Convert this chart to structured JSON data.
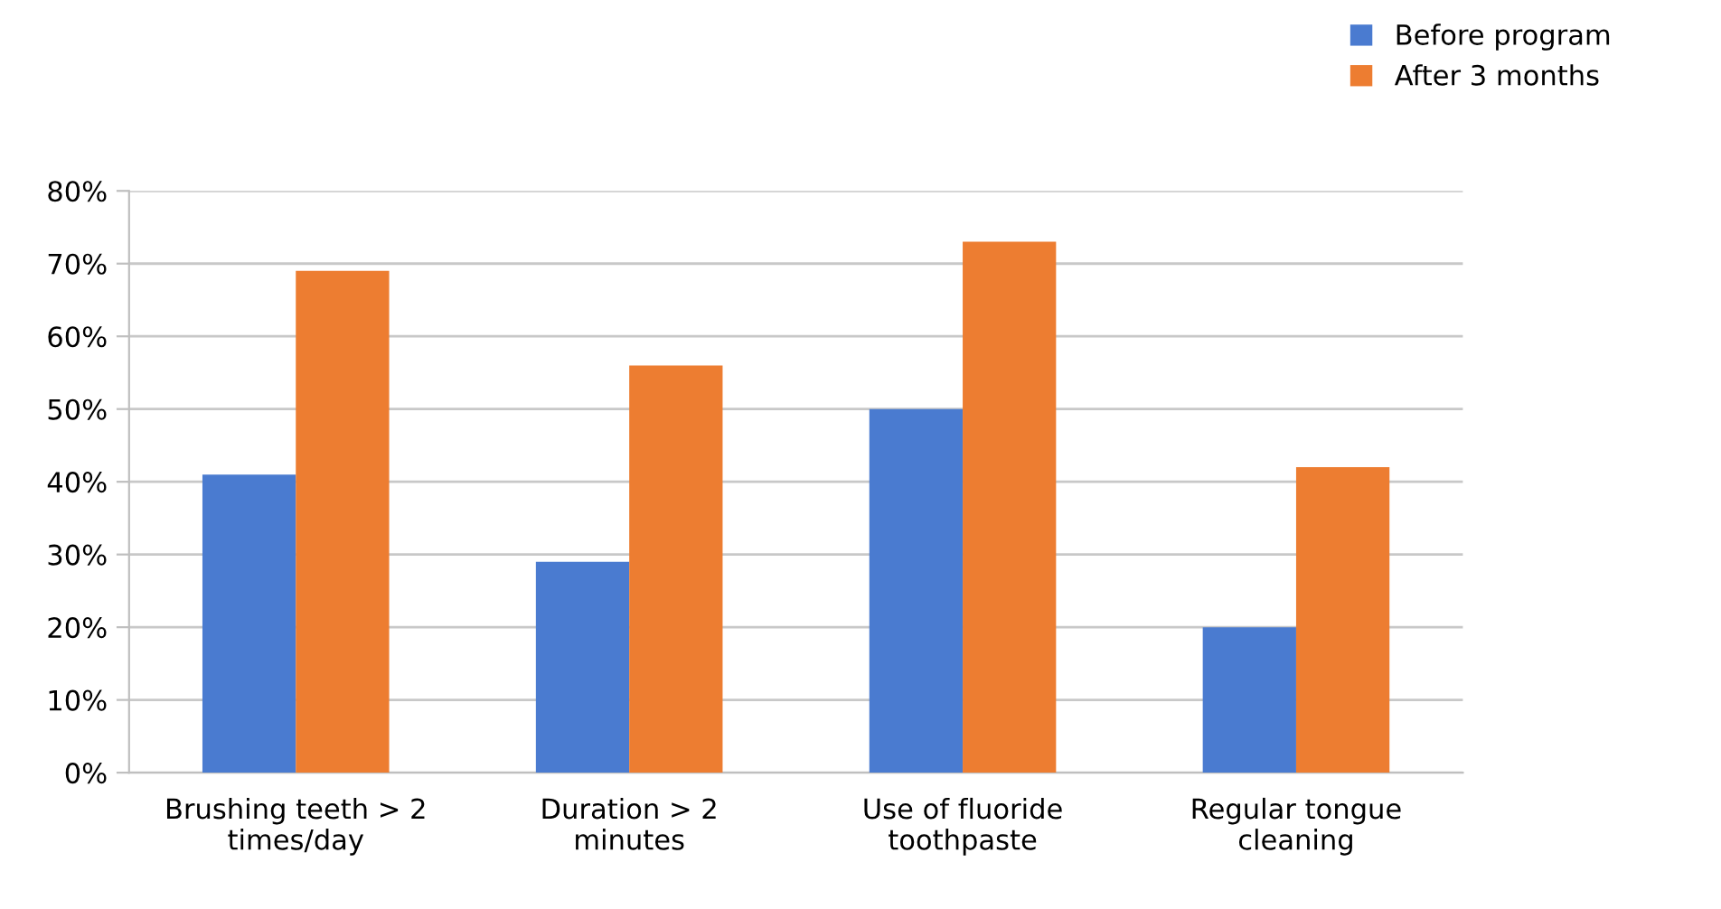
{
  "chart_data": {
    "type": "bar",
    "categories": [
      "Brushing teeth > 2\ntimes/day",
      "Duration > 2\nminutes",
      "Use of fluoride\ntoothpaste",
      "Regular tongue\ncleaning"
    ],
    "series": [
      {
        "name": "Before program",
        "color": "#4a7bd0",
        "values": [
          41,
          29,
          50,
          20
        ]
      },
      {
        "name": "After 3 months",
        "color": "#ed7d31",
        "values": [
          69,
          56,
          73,
          42
        ]
      }
    ],
    "ylim": [
      0,
      80
    ],
    "yticks": [
      {
        "value": 0,
        "label": "0%"
      },
      {
        "value": 10,
        "label": "10%"
      },
      {
        "value": 20,
        "label": "20%"
      },
      {
        "value": 30,
        "label": "30%"
      },
      {
        "value": 40,
        "label": "40%"
      },
      {
        "value": 50,
        "label": "50%"
      },
      {
        "value": 60,
        "label": "60%"
      },
      {
        "value": 70,
        "label": "70%"
      },
      {
        "value": 80,
        "label": "80%"
      }
    ],
    "grid": "y",
    "legend": "top right"
  }
}
